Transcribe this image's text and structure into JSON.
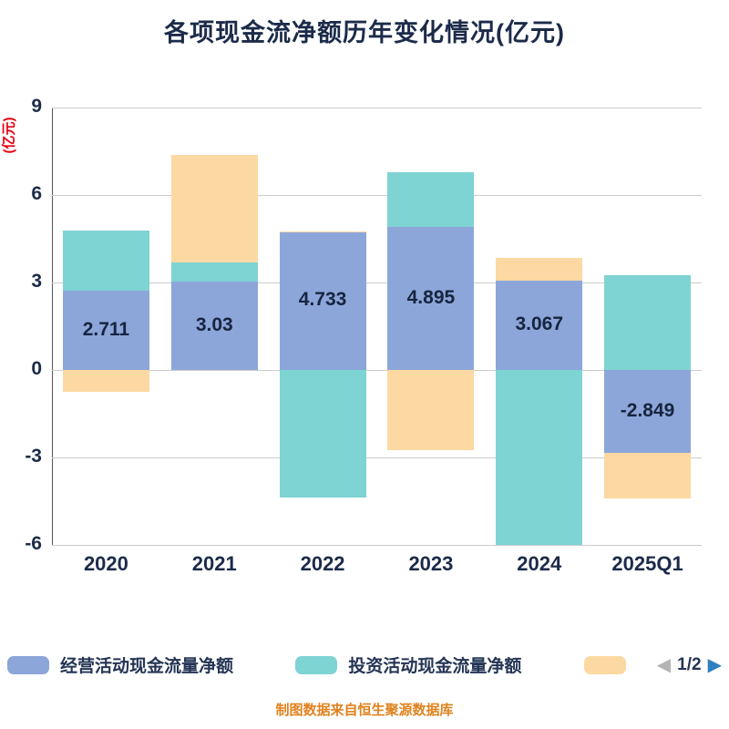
{
  "title": "各项现金流净额历年变化情况(亿元)",
  "y_axis_unit_label": "(亿元)",
  "footer_note": "制图数据来自恒生聚源数据库",
  "legend": {
    "items": [
      {
        "label": "经营活动现金流量净额",
        "color": "#8ca6d9",
        "key": "operating"
      },
      {
        "label": "投资活动现金流量净额",
        "color": "#7ed3d3",
        "key": "investing"
      },
      {
        "label": "",
        "color": "#fcd9a2",
        "key": "other"
      }
    ],
    "pagination": {
      "prev_icon": "◀",
      "label": "1/2",
      "next_icon": "▶"
    }
  },
  "chart_data": {
    "type": "bar",
    "stacked": true,
    "title": "各项现金流净额历年变化情况(亿元)",
    "ylabel": "(亿元)",
    "ylim": [
      -6,
      9
    ],
    "yticks": [
      9,
      6,
      3,
      0,
      -3,
      -6
    ],
    "grid": "horizontal",
    "legend_position": "bottom",
    "categories": [
      "2020",
      "2021",
      "2022",
      "2023",
      "2024",
      "2025Q1"
    ],
    "series": [
      {
        "name": "经营活动现金流量净额",
        "key": "operating",
        "color": "#8ca6d9",
        "values": [
          2.711,
          3.03,
          4.733,
          4.895,
          3.067,
          -2.849
        ]
      },
      {
        "name": "投资活动现金流量净额",
        "key": "investing",
        "color": "#7ed3d3",
        "values": [
          2.06,
          0.67,
          -4.36,
          1.9,
          -6.0,
          3.25
        ]
      },
      {
        "name": "",
        "key": "other",
        "color": "#fcd9a2",
        "values": [
          -0.75,
          3.67,
          0.03,
          -2.75,
          0.79,
          -1.55
        ]
      }
    ],
    "data_labels": {
      "series_key": "operating",
      "values": [
        "2.711",
        "3.03",
        "4.733",
        "4.895",
        "3.067",
        "-2.849"
      ]
    }
  }
}
